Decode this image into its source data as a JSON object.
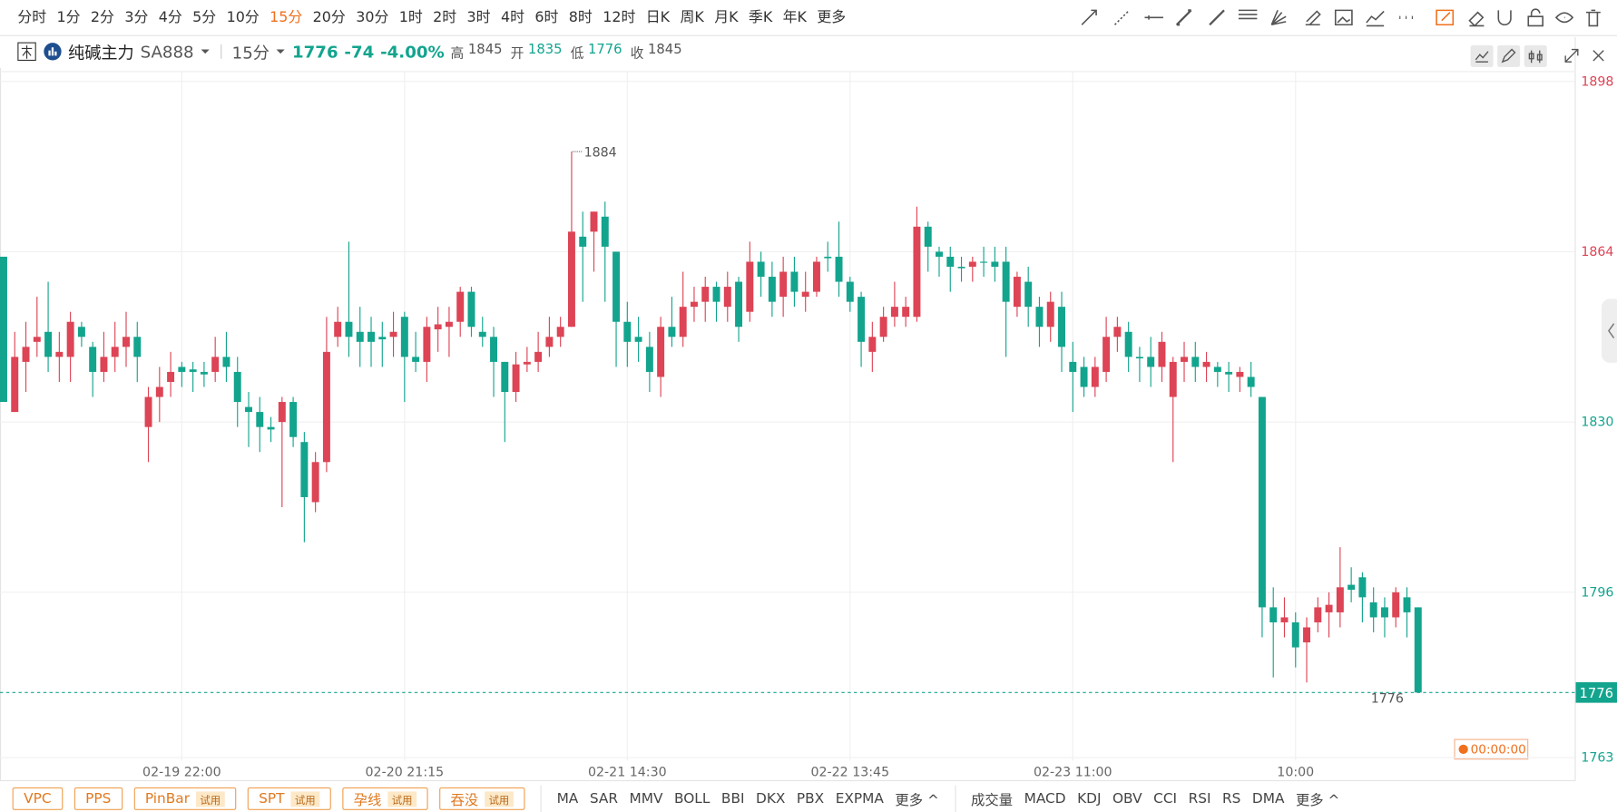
{
  "toolbar": {
    "periods": [
      "分时",
      "1分",
      "2分",
      "3分",
      "4分",
      "5分",
      "10分",
      "15分",
      "20分",
      "30分",
      "1时",
      "2时",
      "3时",
      "4时",
      "6时",
      "8时",
      "12时",
      "日K",
      "周K",
      "月K",
      "季K",
      "年K",
      "更多"
    ],
    "highlighted": 7
  },
  "header": {
    "symbol": "纯碱主力",
    "code": "SA888",
    "period": "15分",
    "last": 1776,
    "change": -74,
    "change_pct": "-4.00%",
    "stats": [
      {
        "label": "高",
        "value": 1845,
        "color": "#555555"
      },
      {
        "label": "开",
        "value": 1835,
        "color": "#13a48e"
      },
      {
        "label": "低",
        "value": 1776,
        "color": "#13a48e"
      },
      {
        "label": "收",
        "value": 1845,
        "color": "#555555"
      }
    ]
  },
  "chart_data": {
    "type": "candlestick",
    "up_color": "#dd4455",
    "down_color": "#13a48e",
    "categories": [
      null,
      null,
      null,
      null,
      null,
      null,
      null,
      null,
      null,
      null,
      null,
      null,
      null,
      null,
      null,
      null,
      "02-19 22:00",
      null,
      null,
      null,
      null,
      null,
      null,
      null,
      null,
      null,
      null,
      null,
      null,
      null,
      null,
      null,
      null,
      null,
      null,
      null,
      "02-20 21:15",
      null,
      null,
      null,
      null,
      null,
      null,
      null,
      null,
      null,
      null,
      null,
      null,
      null,
      null,
      null,
      null,
      null,
      null,
      null,
      "02-21 14:30",
      null,
      null,
      null,
      null,
      null,
      null,
      null,
      null,
      null,
      null,
      null,
      null,
      null,
      null,
      null,
      null,
      null,
      null,
      null,
      "02-22 13:45",
      null,
      null,
      null,
      null,
      null,
      null,
      null,
      null,
      null,
      null,
      null,
      null,
      null,
      null,
      null,
      null,
      null,
      null,
      null,
      "02-23 11:00",
      null,
      null,
      null,
      null,
      null,
      null,
      null,
      null,
      null,
      null,
      null,
      null,
      null,
      null,
      null,
      null,
      null,
      null,
      null,
      "10:00",
      null,
      null,
      null,
      null,
      null,
      null,
      null,
      null,
      null,
      null,
      null
    ],
    "open": [
      1863,
      1832,
      1842,
      1846,
      1848,
      1843,
      1843,
      1849,
      1845,
      1840,
      1843,
      1845,
      1847,
      1829,
      1835,
      1838,
      1841,
      1840.5,
      1840,
      1840,
      1843,
      1840,
      1833,
      1832,
      1829,
      1830,
      1834,
      1826,
      1814,
      1822,
      1847,
      1850,
      1848,
      1848,
      1847,
      1847,
      1851,
      1843,
      1842,
      1848.5,
      1849,
      1850,
      1856,
      1848,
      1847,
      1842,
      1836,
      1841.5,
      1842,
      1845,
      1847,
      1849,
      1867,
      1868,
      1871,
      1864,
      1850,
      1847,
      1845,
      1839,
      1849,
      1847,
      1853,
      1854,
      1857,
      1853,
      1858,
      1852,
      1862,
      1859,
      1855,
      1860,
      1855,
      1856,
      1863,
      1863,
      1858,
      1855,
      1844,
      1847,
      1851,
      1851,
      1851,
      1869,
      1864,
      1863,
      1861,
      1861,
      1862,
      1862,
      1862,
      1853,
      1858,
      1853,
      1849,
      1853,
      1842,
      1841,
      1837,
      1840,
      1847,
      1848,
      1843,
      1843,
      1841,
      1835,
      1842,
      1843,
      1841,
      1841,
      1840,
      1839,
      1839,
      1835,
      1793,
      1790,
      1790,
      1786,
      1790,
      1792,
      1792,
      1797.5,
      1799,
      1794,
      1793,
      1791,
      1795,
      1793
    ],
    "high": [
      1863,
      1848,
      1850,
      1855,
      1858,
      1848,
      1852,
      1850,
      1846,
      1848,
      1850,
      1852,
      1850,
      1837,
      1841,
      1844,
      1842,
      1842,
      1842,
      1847,
      1848,
      1843,
      1836,
      1835,
      1831,
      1835,
      1835,
      1828,
      1824,
      1851,
      1853,
      1866,
      1853,
      1851,
      1850,
      1852,
      1852,
      1848,
      1851,
      1853,
      1853,
      1857,
      1857,
      1851,
      1849,
      1842,
      1844,
      1845,
      1848,
      1851,
      1851,
      1884,
      1872,
      1872,
      1874,
      1864,
      1854,
      1851,
      1848,
      1851,
      1855,
      1860,
      1857,
      1859,
      1858,
      1860,
      1859,
      1866,
      1864,
      1862,
      1863,
      1863,
      1860,
      1863,
      1866,
      1870,
      1859,
      1856,
      1850,
      1853,
      1858,
      1855,
      1873,
      1870,
      1865,
      1865,
      1863,
      1863,
      1865,
      1865,
      1865,
      1860,
      1861,
      1855,
      1856,
      1856,
      1846,
      1843,
      1843,
      1851,
      1851,
      1850,
      1845,
      1847,
      1848,
      1843,
      1846,
      1846,
      1844,
      1842,
      1842,
      1841,
      1842,
      1835,
      1797,
      1795,
      1792,
      1791,
      1795,
      1796,
      1805,
      1801,
      1800,
      1797,
      1795,
      1797,
      1797,
      1793
    ],
    "low": [
      1834,
      1832,
      1836,
      1843,
      1840,
      1838,
      1838,
      1845,
      1835,
      1838,
      1840,
      1841,
      1838,
      1822,
      1830,
      1835,
      1837,
      1836,
      1837,
      1838,
      1838,
      1829,
      1825,
      1824,
      1826,
      1813,
      1825,
      1806,
      1812,
      1820,
      1845,
      1843,
      1841,
      1841,
      1841,
      1843,
      1834,
      1840,
      1838,
      1844,
      1843,
      1847,
      1847,
      1845,
      1835,
      1826,
      1834,
      1840,
      1840,
      1843,
      1845,
      1849,
      1854,
      1860,
      1854,
      1841,
      1841,
      1842,
      1836,
      1835,
      1845,
      1845,
      1850,
      1850,
      1850,
      1850,
      1846,
      1850,
      1855,
      1851,
      1851,
      1853,
      1852,
      1855,
      1860,
      1855,
      1852,
      1841,
      1840,
      1846,
      1849,
      1849,
      1850,
      1860,
      1859,
      1856,
      1858,
      1858,
      1859,
      1858,
      1843,
      1851,
      1849,
      1845,
      1846,
      1840,
      1832,
      1835,
      1835,
      1838,
      1844,
      1840,
      1838,
      1837,
      1838,
      1822,
      1838,
      1838,
      1838,
      1837,
      1836,
      1836,
      1835,
      1787,
      1779,
      1787,
      1781,
      1778,
      1788,
      1787,
      1789,
      1794,
      1790,
      1788,
      1787,
      1789,
      1787,
      1776
    ],
    "close": [
      1834,
      1843,
      1845,
      1847,
      1843,
      1844,
      1850,
      1847,
      1840,
      1843,
      1845,
      1847,
      1843,
      1835,
      1837,
      1840,
      1840,
      1840,
      1839.5,
      1843,
      1841,
      1834,
      1832,
      1829,
      1828.5,
      1834,
      1827,
      1815,
      1822,
      1844,
      1850,
      1847,
      1846,
      1846,
      1846.5,
      1848,
      1843,
      1842,
      1849,
      1849.5,
      1850,
      1856,
      1849,
      1847,
      1842,
      1836,
      1841.5,
      1842,
      1844,
      1847,
      1849,
      1868,
      1865,
      1872,
      1865,
      1850,
      1846,
      1846,
      1840,
      1849,
      1847,
      1853,
      1854,
      1857,
      1854,
      1857,
      1849,
      1862,
      1859,
      1854,
      1860,
      1856,
      1856,
      1862,
      1862.7,
      1858,
      1854,
      1846,
      1847,
      1851,
      1853,
      1853,
      1869,
      1865,
      1863,
      1861,
      1860.7,
      1862,
      1861.8,
      1861,
      1854,
      1859,
      1853,
      1849,
      1854,
      1845,
      1840,
      1837,
      1841,
      1847,
      1849,
      1843,
      1842.7,
      1841,
      1846,
      1842,
      1843,
      1841,
      1842,
      1840,
      1839.5,
      1840,
      1837,
      1793,
      1790,
      1791,
      1785,
      1789,
      1793,
      1793.5,
      1797,
      1796.5,
      1795,
      1791,
      1791,
      1796,
      1792,
      1776
    ],
    "ylim": [
      1762.4,
      1899.85
    ],
    "yticks": [
      1898,
      1864,
      1830,
      1796,
      1763
    ],
    "ytick_colors": [
      "#dd4455",
      "#dd4455",
      "#13a48e",
      "#13a48e",
      "#13a48e"
    ],
    "grid": true
  },
  "timer": "00:00:00",
  "indicators": {
    "patterns": [
      {
        "name": "VPC"
      },
      {
        "name": "PPS"
      },
      {
        "name": "PinBar",
        "tag": "试用"
      },
      {
        "name": "SPT",
        "tag": "试用"
      },
      {
        "name": "孕线",
        "tag": "试用"
      },
      {
        "name": "吞没",
        "tag": "试用"
      }
    ],
    "main": [
      "MA",
      "SAR",
      "MMV",
      "BOLL",
      "BBI",
      "DKX",
      "PBX",
      "EXPMA",
      "更多 ^"
    ],
    "sub": [
      "成交量",
      "MACD",
      "KDJ",
      "OBV",
      "CCI",
      "RSI",
      "RS",
      "DMA",
      "更多 ^"
    ]
  }
}
